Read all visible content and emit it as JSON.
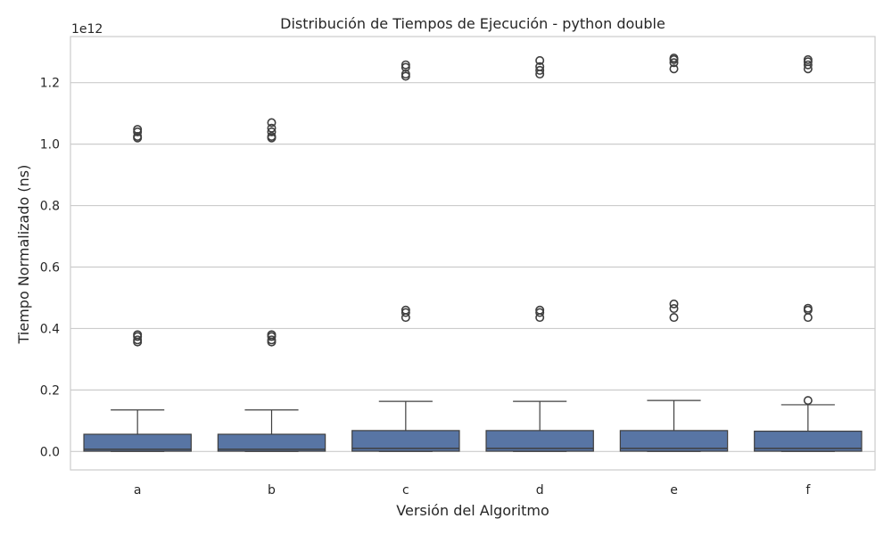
{
  "chart_data": {
    "type": "box",
    "title": "Distribución de Tiempos de Ejecución - python double",
    "xlabel": "Versión del Algoritmo",
    "ylabel": "Tiempo Normalizado (ns)",
    "y_offset_label": "1e12",
    "y_scale_factor": 1000000000000.0,
    "ylim": [
      -0.06,
      1.35
    ],
    "y_ticks": [
      0.0,
      0.2,
      0.4,
      0.6,
      0.8,
      1.0,
      1.2
    ],
    "y_tick_labels": [
      "0.0",
      "0.2",
      "0.4",
      "0.6",
      "0.8",
      "1.0",
      "1.2"
    ],
    "grid": true,
    "box_color": "#5875a4",
    "edge_color": "#3f3f3f",
    "categories": [
      "a",
      "b",
      "c",
      "d",
      "e",
      "f"
    ],
    "boxes": [
      {
        "label": "a",
        "whisker_low": 0.0,
        "q1": 0.001,
        "median": 0.007,
        "q3": 0.056,
        "whisker_high": 0.135,
        "outliers": [
          0.356,
          0.363,
          0.374,
          0.38,
          1.02,
          1.025,
          1.04,
          1.048
        ]
      },
      {
        "label": "b",
        "whisker_low": 0.0,
        "q1": 0.001,
        "median": 0.007,
        "q3": 0.056,
        "whisker_high": 0.135,
        "outliers": [
          0.356,
          0.363,
          0.374,
          0.38,
          1.02,
          1.025,
          1.04,
          1.052,
          1.07
        ]
      },
      {
        "label": "c",
        "whisker_low": 0.0,
        "q1": 0.001,
        "median": 0.01,
        "q3": 0.068,
        "whisker_high": 0.163,
        "outliers": [
          0.436,
          0.452,
          0.46,
          1.221,
          1.228,
          1.25,
          1.258
        ]
      },
      {
        "label": "d",
        "whisker_low": 0.0,
        "q1": 0.001,
        "median": 0.01,
        "q3": 0.068,
        "whisker_high": 0.163,
        "outliers": [
          0.436,
          0.452,
          0.46,
          1.228,
          1.24,
          1.252,
          1.272
        ]
      },
      {
        "label": "e",
        "whisker_low": 0.0,
        "q1": 0.001,
        "median": 0.01,
        "q3": 0.068,
        "whisker_high": 0.166,
        "outliers": [
          0.436,
          0.465,
          0.48,
          1.245,
          1.265,
          1.275,
          1.28
        ]
      },
      {
        "label": "f",
        "whisker_low": 0.0,
        "q1": 0.001,
        "median": 0.01,
        "q3": 0.066,
        "whisker_high": 0.152,
        "outliers": [
          0.166,
          0.436,
          0.46,
          0.466,
          1.245,
          1.258,
          1.268,
          1.275
        ]
      }
    ]
  }
}
